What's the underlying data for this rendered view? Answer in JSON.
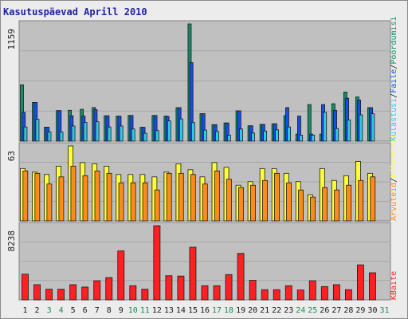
{
  "chart_data": [
    {
      "type": "bar",
      "panel": "top",
      "title": "Kasutuspäevad Aprill 2010",
      "ymax_label": "1159",
      "ylim": [
        0,
        1159
      ],
      "grid": true,
      "categories": [
        "1",
        "2",
        "3",
        "4",
        "5",
        "6",
        "7",
        "8",
        "9",
        "10",
        "11",
        "12",
        "13",
        "14",
        "15",
        "16",
        "17",
        "18",
        "19",
        "20",
        "21",
        "22",
        "23",
        "24",
        "25",
        "26",
        "27",
        "28",
        "29",
        "30",
        "31"
      ],
      "series": [
        {
          "name": "Pöördumisi",
          "color": "#1a8a6a",
          "values": [
            557,
            383,
            138,
            302,
            305,
            315,
            333,
            251,
            247,
            254,
            137,
            254,
            248,
            331,
            1159,
            272,
            163,
            180,
            300,
            152,
            166,
            172,
            253,
            70,
            362,
            70,
            370,
            485,
            437,
            331,
            0
          ]
        },
        {
          "name": "Faile",
          "color": "#1450e6",
          "values": [
            285,
            383,
            138,
            302,
            251,
            247,
            312,
            251,
            247,
            254,
            137,
            254,
            245,
            331,
            776,
            272,
            163,
            180,
            300,
            152,
            166,
            172,
            332,
            248,
            70,
            362,
            305,
            424,
            407,
            331,
            0
          ]
        },
        {
          "name": "Külastusi",
          "color": "#30c8e6",
          "values": [
            140,
            216,
            90,
            90,
            150,
            185,
            192,
            140,
            150,
            120,
            78,
            105,
            200,
            220,
            183,
            110,
            96,
            60,
            120,
            80,
            100,
            112,
            140,
            60,
            60,
            285,
            125,
            210,
            260,
            271,
            0
          ]
        }
      ],
      "side_label_parts": [
        "Külastusi",
        "/",
        "Faile",
        "/",
        "Pöördumisi"
      ]
    },
    {
      "type": "bar",
      "panel": "middle",
      "ymax_label": "63",
      "ylim": [
        0,
        63
      ],
      "grid": true,
      "series": [
        {
          "name": "Külastusi",
          "color": "#ffff33",
          "values": [
            44,
            41,
            39,
            46,
            63,
            49,
            48,
            46,
            39,
            39,
            39,
            37,
            41,
            48,
            43,
            37,
            49,
            45,
            30,
            33,
            44,
            44,
            40,
            33,
            22,
            44,
            34,
            38,
            50,
            40,
            0
          ]
        },
        {
          "name": "Arvuteid",
          "color": "#ff8c1a",
          "values": [
            42,
            40,
            31,
            37,
            46,
            38,
            42,
            40,
            32,
            32,
            32,
            26,
            40,
            40,
            39,
            31,
            42,
            35,
            28,
            30,
            34,
            40,
            32,
            26,
            20,
            28,
            26,
            30,
            34,
            37,
            0
          ]
        }
      ],
      "side_label_parts": [
        "Arvuteid",
        "/",
        "Külastusi"
      ]
    },
    {
      "type": "bar",
      "panel": "bottom",
      "ymax_label": "8238",
      "ylim": [
        0,
        8238
      ],
      "grid": true,
      "series": [
        {
          "name": "KBaite",
          "color": "#ff2020",
          "values": [
            2854,
            1686,
            1183,
            1183,
            1686,
            1421,
            2121,
            2476,
            5433,
            1573,
            1183,
            8238,
            2680,
            2642,
            5850,
            1573,
            1573,
            2808,
            5158,
            2166,
            1128,
            1128,
            1573,
            1095,
            2121,
            1475,
            1686,
            1128,
            3886,
            3010,
            0
          ]
        }
      ],
      "side_label_parts": [
        "KBaite"
      ]
    }
  ],
  "colors": {
    "panel_bg": "#c0c0c0",
    "weekend_day": "#228b55",
    "weekday_day": "#1a1a1a"
  },
  "weekend_days": [
    "3",
    "4",
    "10",
    "11",
    "17",
    "18",
    "24",
    "25",
    "31"
  ]
}
